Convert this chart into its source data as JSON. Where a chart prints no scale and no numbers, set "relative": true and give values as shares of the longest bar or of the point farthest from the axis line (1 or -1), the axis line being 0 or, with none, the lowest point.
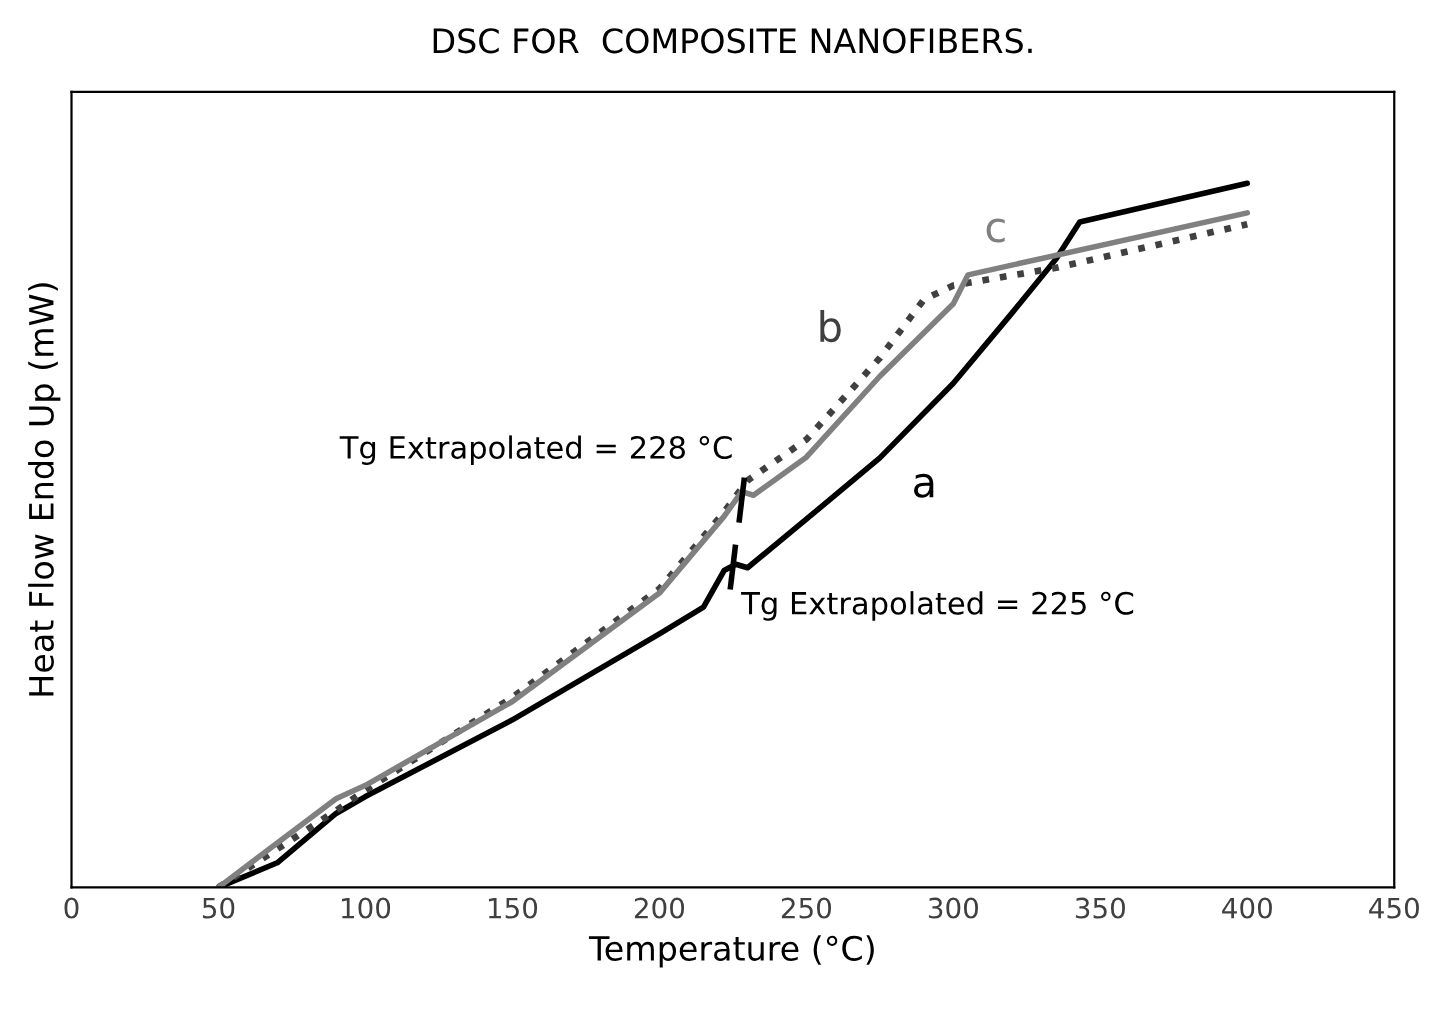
{
  "chart_data": {
    "type": "line",
    "title": "DSC FOR  COMPOSITE NANOFIBERS.",
    "xlabel": "Temperature (°C)",
    "ylabel": "Heat Flow Endo Up (mW)",
    "relative": true,
    "tick_labels": "x",
    "grid": false,
    "legend": false,
    "marker": "none",
    "xlim": [
      0,
      450
    ],
    "xticks": [
      0,
      50,
      100,
      150,
      200,
      250,
      300,
      350,
      400,
      450
    ],
    "series": [
      {
        "name": "a",
        "color": "#000000",
        "line_style": "solid",
        "x": [
          50,
          70,
          90,
          100,
          150,
          200,
          215,
          222,
          226,
          230,
          250,
          275,
          300,
          320,
          335,
          343,
          400
        ],
        "values": [
          0,
          0.035,
          0.105,
          0.129,
          0.238,
          0.36,
          0.398,
          0.45,
          0.459,
          0.454,
          0.523,
          0.61,
          0.716,
          0.816,
          0.893,
          0.945,
          1.0
        ]
      },
      {
        "name": "b",
        "color": "#404040",
        "line_style": "dotted",
        "x": [
          50,
          90,
          100,
          150,
          200,
          222,
          230,
          250,
          275,
          290,
          300,
          335,
          400
        ],
        "values": [
          0,
          0.109,
          0.138,
          0.27,
          0.424,
          0.533,
          0.578,
          0.636,
          0.752,
          0.835,
          0.855,
          0.88,
          0.942
        ]
      },
      {
        "name": "c",
        "color": "#808080",
        "line_style": "solid",
        "x": [
          50,
          90,
          100,
          150,
          200,
          222,
          228,
          232,
          250,
          275,
          300,
          305,
          400
        ],
        "values": [
          0,
          0.126,
          0.145,
          0.264,
          0.418,
          0.527,
          0.562,
          0.557,
          0.611,
          0.726,
          0.829,
          0.87,
          0.958
        ]
      }
    ],
    "annotations": [
      {
        "text": "Tg Extrapolated = 228 °C",
        "x": 228,
        "y": 0.55
      },
      {
        "text": "Tg Extrapolated = 225 °C",
        "x": 225,
        "y": 0.455
      }
    ]
  }
}
